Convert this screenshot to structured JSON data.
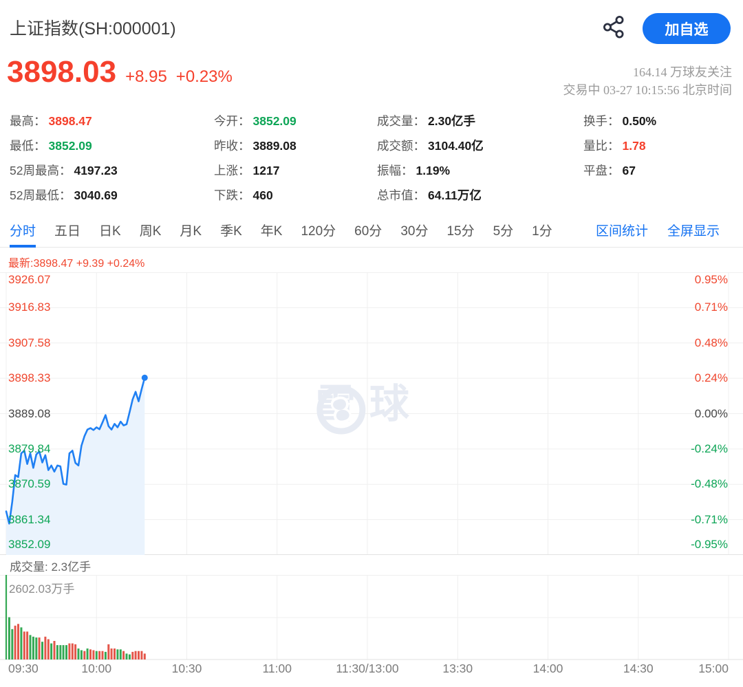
{
  "header": {
    "title": "上证指数(SH:000001)",
    "add_watchlist_label": "加自选",
    "price": "3898.03",
    "change": "+8.95",
    "change_pct": "+0.23%",
    "followers": "164.14 万球友关注",
    "trading_status": "交易中 03-27 10:15:56 北京时间"
  },
  "stats": {
    "columns": [
      {
        "items": [
          {
            "label": "最高：",
            "value": "3898.47",
            "color": "up"
          },
          {
            "label": "最低：",
            "value": "3852.09",
            "color": "down"
          },
          {
            "label": "52周最高：",
            "value": "4197.23",
            "color": null
          },
          {
            "label": "52周最低：",
            "value": "3040.69",
            "color": null
          }
        ]
      },
      {
        "items": [
          {
            "label": "今开：",
            "value": "3852.09",
            "color": "down"
          },
          {
            "label": "昨收：",
            "value": "3889.08",
            "color": null
          },
          {
            "label": "上涨：",
            "value": "1217",
            "color": null
          },
          {
            "label": "下跌：",
            "value": "460",
            "color": null
          }
        ]
      },
      {
        "items": [
          {
            "label": "成交量：",
            "value": "2.30亿手",
            "color": null
          },
          {
            "label": "成交额：",
            "value": "3104.40亿",
            "color": null
          },
          {
            "label": "振幅：",
            "value": "1.19%",
            "color": null
          },
          {
            "label": "总市值：",
            "value": "64.11万亿",
            "color": null
          }
        ]
      },
      {
        "items": [
          {
            "label": "换手：",
            "value": "0.50%",
            "color": null
          },
          {
            "label": "量比：",
            "value": "1.78",
            "color": "up"
          },
          {
            "label": "平盘：",
            "value": "67",
            "color": null
          }
        ]
      }
    ]
  },
  "tabs": {
    "items": [
      "分时",
      "五日",
      "日K",
      "周K",
      "月K",
      "季K",
      "年K",
      "120分",
      "60分",
      "30分",
      "15分",
      "5分",
      "1分"
    ],
    "active_index": 0,
    "right_links": [
      "区间统计",
      "全屏显示"
    ]
  },
  "chart": {
    "latest_line": "最新:3898.47 +9.39 +0.24%",
    "watermark_text": "雪球",
    "volume_title": "成交量: 2.3亿手",
    "volume_max_label": "2602.03万手"
  },
  "chart_data": {
    "type": "line",
    "title": "上证指数分时图",
    "y_min": 3852.09,
    "y_max": 3926.07,
    "prev_close": 3889.08,
    "y_axis_left_labels": [
      "3926.07",
      "3916.83",
      "3907.58",
      "3898.33",
      "3889.08",
      "3879.84",
      "3870.59",
      "3861.34",
      "3852.09"
    ],
    "y_axis_right_labels": [
      "0.95%",
      "0.71%",
      "0.48%",
      "0.24%",
      "0.00%",
      "-0.24%",
      "-0.48%",
      "-0.71%",
      "-0.95%"
    ],
    "x_axis_labels": [
      "09:30",
      "10:00",
      "10:30",
      "11:00",
      "11:30/13:00",
      "13:30",
      "14:00",
      "14:30",
      "15:00"
    ],
    "x_start": "09:30",
    "x_interval_minutes": 1,
    "latest_price": 3898.47,
    "prices": [
      3863.5,
      3860.3,
      3866.0,
      3873.0,
      3872.5,
      3878.7,
      3879.4,
      3875.9,
      3878.7,
      3874.9,
      3878.4,
      3879.2,
      3876.3,
      3878.2,
      3874.3,
      3875.5,
      3873.9,
      3875.5,
      3875.3,
      3870.7,
      3870.5,
      3878.7,
      3879.4,
      3876.2,
      3875.5,
      3880.7,
      3883.2,
      3884.9,
      3885.3,
      3884.8,
      3885.5,
      3885.0,
      3886.8,
      3888.7,
      3885.8,
      3884.9,
      3886.4,
      3885.5,
      3887.0,
      3886.0,
      3886.3,
      3889.5,
      3892.8,
      3894.8,
      3892.3,
      3895.5,
      3898.47
    ],
    "volume_unit": "万手",
    "volume_max": 2602.03,
    "volumes": [
      2602.03,
      1301,
      936,
      1041,
      1093,
      988,
      858,
      858,
      754,
      702,
      676,
      676,
      546,
      702,
      624,
      494,
      572,
      442,
      442,
      442,
      442,
      494,
      494,
      468,
      338,
      286,
      260,
      338,
      312,
      286,
      260,
      260,
      260,
      234,
      468,
      338,
      338,
      312,
      312,
      260,
      182,
      156,
      234,
      260,
      260,
      260,
      182
    ],
    "volume_dirs": [
      "g",
      "g",
      "g",
      "r",
      "r",
      "g",
      "r",
      "r",
      "g",
      "g",
      "g",
      "r",
      "g",
      "r",
      "r",
      "g",
      "r",
      "g",
      "g",
      "g",
      "g",
      "r",
      "r",
      "r",
      "g",
      "g",
      "r",
      "g",
      "r",
      "r",
      "g",
      "r",
      "r",
      "g",
      "r",
      "r",
      "r",
      "g",
      "g",
      "r",
      "g",
      "g",
      "r",
      "r",
      "r",
      "r",
      "r"
    ]
  },
  "colors": {
    "up_red": "#f5402c",
    "axis_red": "#f0472f",
    "down_green": "#0da556",
    "flat_dark": "#454545",
    "blue": "#1673f2",
    "line_blue": "#2080f3",
    "area_fill": "#eaf3fd",
    "grid": "#efefef",
    "axis_line": "#e2e2e2",
    "vol_green": "#35a854",
    "vol_red": "#e4564a",
    "watermark": "#e7ebf3",
    "icon_dark": "#2b3040"
  }
}
